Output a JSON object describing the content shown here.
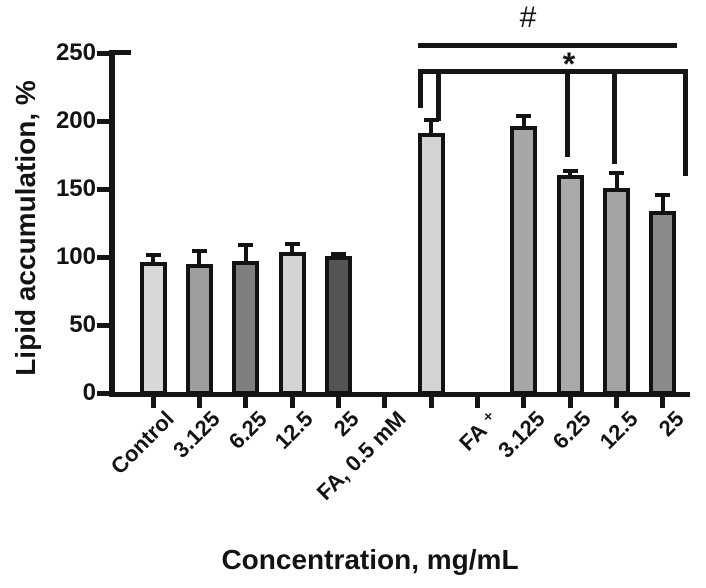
{
  "chart_data": {
    "type": "bar",
    "title": "",
    "ylabel": "Lipid accumulation, %",
    "xlabel": "Concentration, mg/mL",
    "ylim": [
      0,
      250
    ],
    "yticks": [
      0,
      50,
      100,
      150,
      200,
      250
    ],
    "grid": false,
    "legend": null,
    "annotations": {
      "hash": "#",
      "star": "*"
    },
    "bars": [
      {
        "label": "Control",
        "value": 96,
        "sd": 7,
        "color": "#d8d8d8"
      },
      {
        "label": "3.125",
        "value": 95,
        "sd": 11,
        "color": "#9e9e9e"
      },
      {
        "label": "6.25",
        "value": 97,
        "sd": 13,
        "color": "#7f7f7f"
      },
      {
        "label": "12.5",
        "value": 104,
        "sd": 7,
        "color": "#d4d4d4"
      },
      {
        "label": "25",
        "value": 101,
        "sd": 3,
        "color": "#545454"
      },
      {
        "label": "FA, 0.5 mM",
        "value": null,
        "sd": null,
        "color": null
      },
      {
        "label": "",
        "value": 191,
        "sd": 11,
        "color": "#d3d3d3"
      },
      {
        "label": "FA ⁺",
        "value": null,
        "sd": null,
        "color": null
      },
      {
        "label": "3.125",
        "value": 196,
        "sd": 9,
        "color": "#a6a6a6"
      },
      {
        "label": "6.25",
        "value": 160,
        "sd": 5,
        "color": "#a9a9a9"
      },
      {
        "label": "12.5",
        "value": 151,
        "sd": 12,
        "color": "#a3a3a3"
      },
      {
        "label": "25",
        "value": 134,
        "sd": 13,
        "color": "#8a8a8a"
      }
    ]
  }
}
